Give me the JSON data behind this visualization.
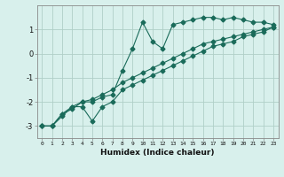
{
  "xlabel": "Humidex (Indice chaleur)",
  "ylabel": "",
  "x_values": [
    0,
    1,
    2,
    3,
    4,
    5,
    6,
    7,
    8,
    9,
    10,
    11,
    12,
    13,
    14,
    15,
    16,
    17,
    18,
    19,
    20,
    21,
    22,
    23
  ],
  "line1": [
    -3.0,
    -3.0,
    -2.6,
    -2.2,
    -2.0,
    -2.0,
    -1.8,
    -1.7,
    -0.7,
    0.2,
    1.3,
    0.5,
    0.2,
    1.2,
    1.3,
    1.4,
    1.5,
    1.5,
    1.4,
    1.5,
    1.4,
    1.3,
    1.3,
    1.2
  ],
  "line2": [
    -3.0,
    -3.0,
    -2.5,
    -2.2,
    -2.2,
    -2.8,
    -2.2,
    -2.0,
    -1.5,
    -1.3,
    -1.1,
    -0.9,
    -0.7,
    -0.5,
    -0.3,
    -0.1,
    0.1,
    0.3,
    0.4,
    0.5,
    0.7,
    0.8,
    0.9,
    1.1
  ],
  "line3": [
    -3.0,
    -3.0,
    -2.5,
    -2.3,
    -2.0,
    -1.9,
    -1.7,
    -1.5,
    -1.2,
    -1.0,
    -0.8,
    -0.6,
    -0.4,
    -0.2,
    0.0,
    0.2,
    0.4,
    0.5,
    0.6,
    0.7,
    0.8,
    0.9,
    1.0,
    1.1
  ],
  "line_color": "#1a6b5a",
  "bg_color": "#d8f0ec",
  "grid_color": "#b0cfc8",
  "ylim": [
    -3.5,
    2.0
  ],
  "xlim": [
    -0.5,
    23.5
  ],
  "yticks": [
    -3,
    -2,
    -1,
    0,
    1
  ],
  "xticks": [
    0,
    1,
    2,
    3,
    4,
    5,
    6,
    7,
    8,
    9,
    10,
    11,
    12,
    13,
    14,
    15,
    16,
    17,
    18,
    19,
    20,
    21,
    22,
    23
  ],
  "xtick_labels": [
    "0",
    "1",
    "2",
    "3",
    "4",
    "5",
    "6",
    "7",
    "8",
    "9",
    "10",
    "11",
    "12",
    "13",
    "14",
    "15",
    "16",
    "17",
    "18",
    "19",
    "20",
    "21",
    "22",
    "23"
  ],
  "marker": "D",
  "markersize": 2.5,
  "linewidth": 0.8
}
